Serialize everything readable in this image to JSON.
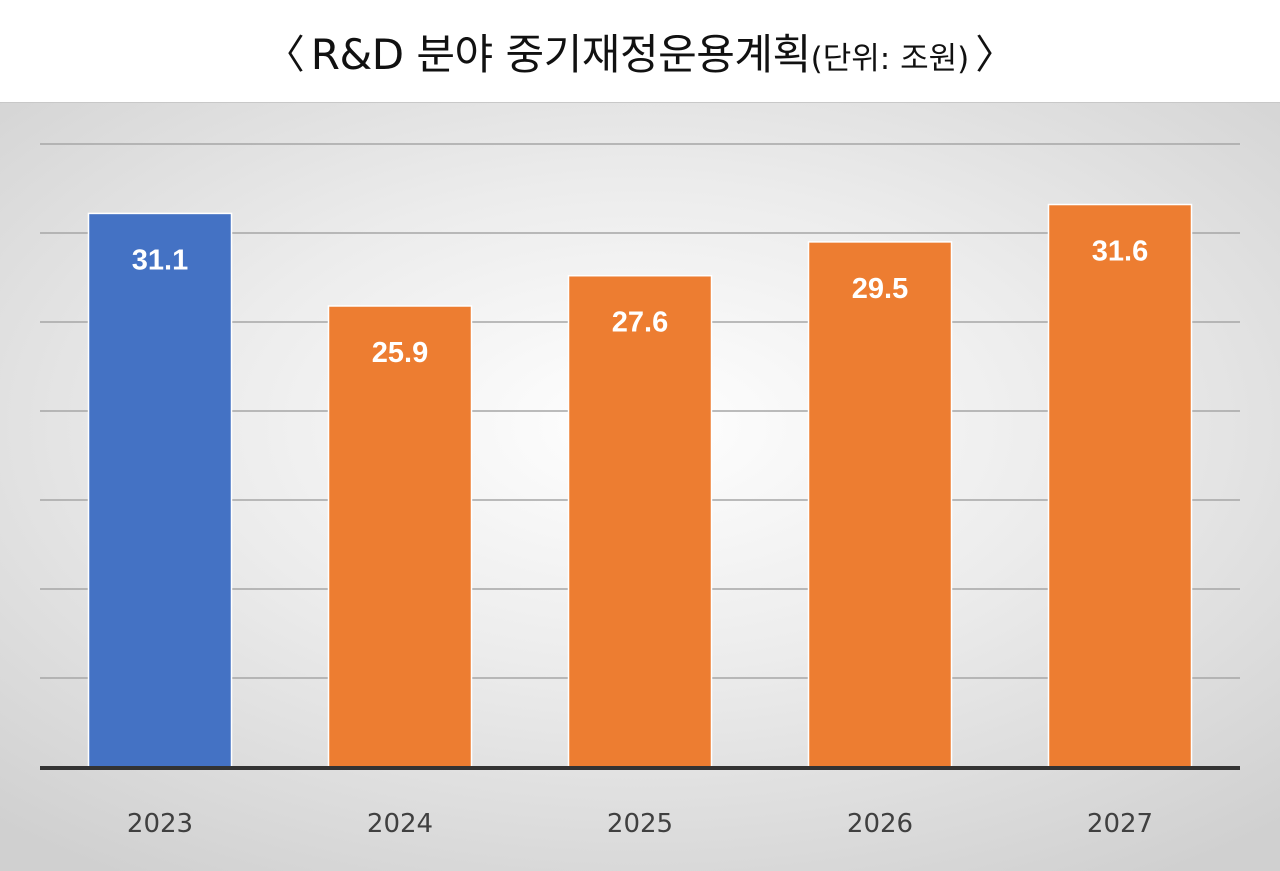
{
  "title": {
    "open_bracket": "〈",
    "main": "R&D 분야 중기재정운용계획",
    "unit": "(단위: 조원)",
    "close_bracket": "〉"
  },
  "colors": {
    "actual": "#4472c4",
    "plan": "#ed7d31",
    "gridline": "#a6a6a6",
    "axis": "#333333"
  },
  "chart_data": {
    "type": "bar",
    "title": "R&D 분야 중기재정운용계획",
    "unit": "(단위: 조원)",
    "categories": [
      "2023",
      "2024",
      "2025",
      "2026",
      "2027"
    ],
    "values": [
      31.1,
      25.9,
      27.6,
      29.5,
      31.6
    ],
    "bar_colors": [
      "#4472c4",
      "#ed7d31",
      "#ed7d31",
      "#ed7d31",
      "#ed7d31"
    ],
    "data_labels": [
      "31.1",
      "25.9",
      "27.6",
      "29.5",
      "31.6"
    ],
    "ylim": [
      0,
      35
    ],
    "ytick_step": 5,
    "y_axis_labels_shown": false,
    "grid": true,
    "legend": "none"
  }
}
